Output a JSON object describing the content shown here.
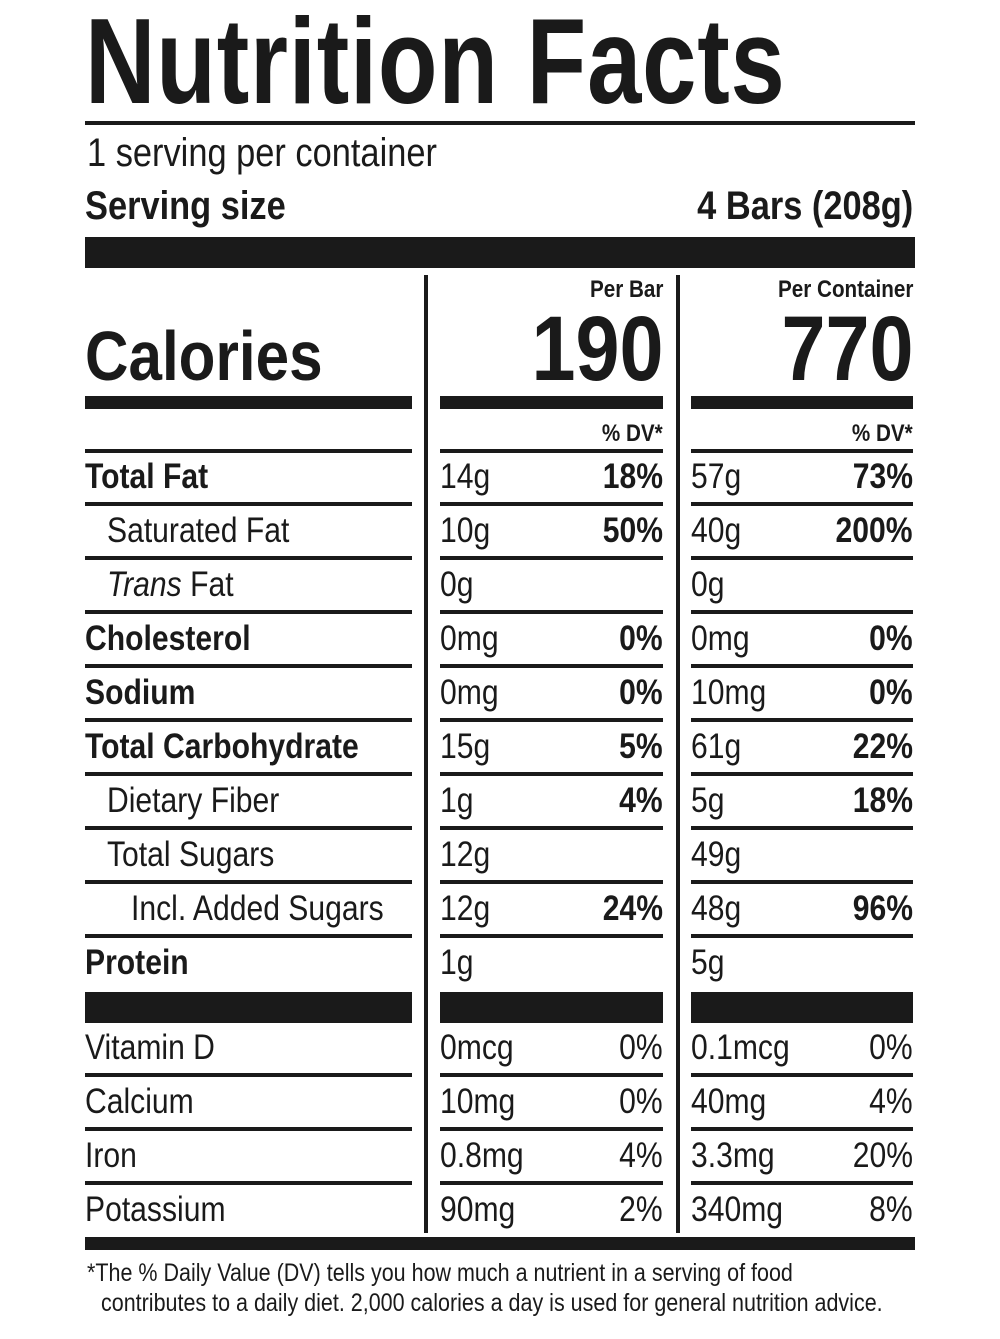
{
  "title": "Nutrition Facts",
  "servings_per_container": "1 serving per container",
  "serving_size_label": "Serving size",
  "serving_size_value": "4 Bars (208g)",
  "calories_label": "Calories",
  "columns": [
    {
      "header": "Per Bar",
      "calories": "190",
      "dv_header": "% DV*"
    },
    {
      "header": "Per Container",
      "calories": "770",
      "dv_header": "% DV*"
    }
  ],
  "nutrients": [
    {
      "name": "Total Fat",
      "bold": true,
      "indent": 0,
      "v": [
        [
          "14g",
          "18%"
        ],
        [
          "57g",
          "73%"
        ]
      ]
    },
    {
      "name": "Saturated Fat",
      "bold": false,
      "indent": 1,
      "v": [
        [
          "10g",
          "50%"
        ],
        [
          "40g",
          "200%"
        ]
      ]
    },
    {
      "name": "Trans Fat",
      "italic_prefix": "Trans",
      "bold": false,
      "indent": 1,
      "v": [
        [
          "0g",
          ""
        ],
        [
          "0g",
          ""
        ]
      ]
    },
    {
      "name": "Cholesterol",
      "bold": true,
      "indent": 0,
      "v": [
        [
          "0mg",
          "0%"
        ],
        [
          "0mg",
          "0%"
        ]
      ]
    },
    {
      "name": "Sodium",
      "bold": true,
      "indent": 0,
      "v": [
        [
          "0mg",
          "0%"
        ],
        [
          "10mg",
          "0%"
        ]
      ]
    },
    {
      "name": "Total Carbohydrate",
      "bold": true,
      "indent": 0,
      "v": [
        [
          "15g",
          "5%"
        ],
        [
          "61g",
          "22%"
        ]
      ]
    },
    {
      "name": "Dietary Fiber",
      "bold": false,
      "indent": 1,
      "v": [
        [
          "1g",
          "4%"
        ],
        [
          "5g",
          "18%"
        ]
      ]
    },
    {
      "name": "Total Sugars",
      "bold": false,
      "indent": 1,
      "v": [
        [
          "12g",
          ""
        ],
        [
          "49g",
          ""
        ]
      ]
    },
    {
      "name": "Incl. Added Sugars",
      "bold": false,
      "indent": 2,
      "v": [
        [
          "12g",
          "24%"
        ],
        [
          "48g",
          "96%"
        ]
      ]
    },
    {
      "name": "Protein",
      "bold": true,
      "indent": 0,
      "v": [
        [
          "1g",
          ""
        ],
        [
          "5g",
          ""
        ]
      ]
    }
  ],
  "vitamins": [
    {
      "name": "Vitamin D",
      "v": [
        [
          "0mcg",
          "0%"
        ],
        [
          "0.1mcg",
          "0%"
        ]
      ]
    },
    {
      "name": "Calcium",
      "v": [
        [
          "10mg",
          "0%"
        ],
        [
          "40mg",
          "4%"
        ]
      ]
    },
    {
      "name": "Iron",
      "v": [
        [
          "0.8mg",
          "4%"
        ],
        [
          "3.3mg",
          "20%"
        ]
      ]
    },
    {
      "name": "Potassium",
      "v": [
        [
          "90mg",
          "2%"
        ],
        [
          "340mg",
          "8%"
        ]
      ]
    }
  ],
  "footnote_line1": "*The % Daily Value (DV) tells you how much a nutrient in a serving of food",
  "footnote_line2": "contributes to a daily diet. 2,000 calories a day is used for general nutrition advice."
}
